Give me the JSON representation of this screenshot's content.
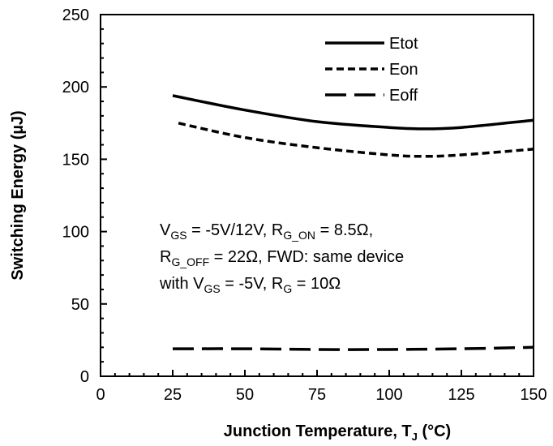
{
  "chart_data": {
    "type": "line",
    "xlabel": {
      "main": "Junction Temperature, T",
      "sub": "J",
      "unit": " (°C)"
    },
    "ylabel": "Switching Energy (µJ)",
    "xlim": [
      0,
      150
    ],
    "ylim": [
      0,
      250
    ],
    "xticks": [
      0,
      25,
      50,
      75,
      100,
      125,
      150
    ],
    "yticks": [
      0,
      50,
      100,
      150,
      200,
      250
    ],
    "grid": false,
    "legend_position": "top-right",
    "series": [
      {
        "name": "Etot",
        "style": "solid",
        "x": [
          25,
          50,
          75,
          100,
          112,
          125,
          150
        ],
        "y": [
          194,
          184,
          176,
          172,
          171,
          172,
          177
        ]
      },
      {
        "name": "Eon",
        "style": "short-dash",
        "x": [
          27,
          50,
          75,
          100,
          112,
          125,
          150
        ],
        "y": [
          175,
          165,
          158,
          153,
          152,
          153,
          157
        ]
      },
      {
        "name": "Eoff",
        "style": "long-dash",
        "x": [
          25,
          50,
          75,
          100,
          125,
          150
        ],
        "y": [
          19,
          19,
          18.5,
          18.5,
          19,
          20
        ]
      }
    ],
    "annotation": {
      "lines": [
        [
          {
            "t": "V"
          },
          {
            "t": "GS",
            "sub": true
          },
          {
            "t": " = -5V/12V, R"
          },
          {
            "t": "G_ON",
            "sub": true
          },
          {
            "t": " = 8.5Ω,"
          }
        ],
        [
          {
            "t": "R"
          },
          {
            "t": "G_OFF",
            "sub": true
          },
          {
            "t": " = 22Ω, FWD: same device"
          }
        ],
        [
          {
            "t": "with V"
          },
          {
            "t": "GS",
            "sub": true
          },
          {
            "t": " = -5V, R"
          },
          {
            "t": "G",
            "sub": true
          },
          {
            "t": " = 10Ω"
          }
        ]
      ]
    }
  },
  "colors": {
    "line": "#000000",
    "background": "#ffffff"
  }
}
